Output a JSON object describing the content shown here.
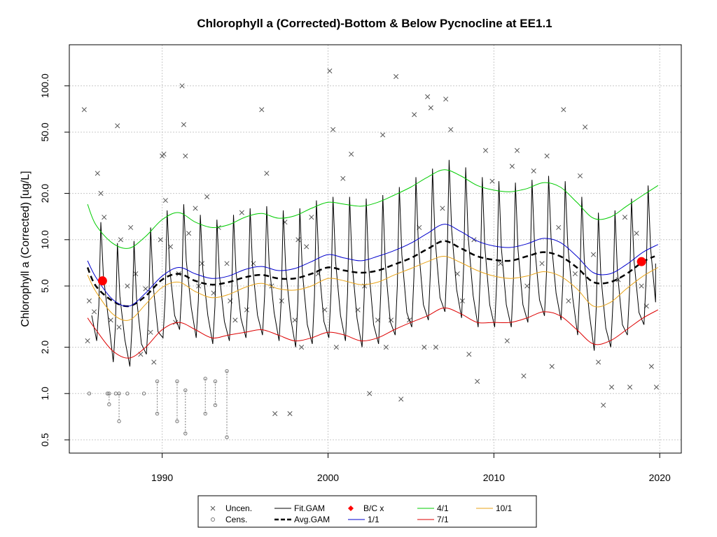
{
  "chart_data": {
    "type": "line",
    "title": "Chlorophyll a (Corrected)-Bottom & Below Pycnocline at EE1.1",
    "xlabel": "",
    "ylabel": "Chlorophyll a (Corrected) [ug/L]",
    "y_scale": "log",
    "xlim": [
      1984.4,
      2021.3
    ],
    "ylim": [
      0.41,
      185
    ],
    "x_ticks": [
      1990,
      2000,
      2010,
      2020
    ],
    "x_tick_labels": [
      "1990",
      "2000",
      "2010",
      "2020"
    ],
    "y_ticks": [
      0.5,
      1.0,
      2.0,
      5.0,
      10.0,
      20.0,
      50.0,
      100.0
    ],
    "y_tick_labels": [
      "0.5",
      "1.0",
      "2.0",
      "5.0",
      "10.0",
      "20.0",
      "50.0",
      "100.0"
    ],
    "grid": true,
    "legend_position": "bottom",
    "legend": [
      {
        "label": "Uncen.",
        "kind": "cross",
        "color": "#555555"
      },
      {
        "label": "Cens.",
        "kind": "circle",
        "color": "#777777"
      },
      {
        "label": "Fit.GAM",
        "kind": "line",
        "color": "#000000"
      },
      {
        "label": "Avg.GAM",
        "kind": "dashed",
        "color": "#000000"
      },
      {
        "label": "B/C x",
        "kind": "dot",
        "color": "#ff0000"
      },
      {
        "label": "1/1",
        "kind": "line",
        "color": "#0000cd"
      },
      {
        "label": "4/1",
        "kind": "line",
        "color": "#00cc00"
      },
      {
        "label": "7/1",
        "kind": "line",
        "color": "#dd0000"
      },
      {
        "label": "10/1",
        "kind": "line",
        "color": "#e8a317"
      }
    ],
    "series": [
      {
        "name": "Avg.GAM",
        "color": "#000000",
        "style": "dashed",
        "x": [
          1985.5,
          1986,
          1987,
          1988,
          1989,
          1990,
          1991,
          1992,
          1993,
          1994,
          1995,
          1996,
          1997,
          1998,
          1999,
          2000,
          2001,
          2002,
          2003,
          2004,
          2005,
          2006,
          2007,
          2008,
          2009,
          2010,
          2011,
          2012,
          2013,
          2014,
          2015,
          2016,
          2017,
          2018,
          2019,
          2019.7
        ],
        "y": [
          6.6,
          5.0,
          4.0,
          3.7,
          4.3,
          5.5,
          6.0,
          5.4,
          5.1,
          5.3,
          5.7,
          5.9,
          5.6,
          5.6,
          6.0,
          6.6,
          6.3,
          6.1,
          6.3,
          6.9,
          7.6,
          8.7,
          9.8,
          8.8,
          7.8,
          7.4,
          7.3,
          7.8,
          8.3,
          7.8,
          6.6,
          5.3,
          5.3,
          6.0,
          7.2,
          7.8
        ]
      },
      {
        "name": "1/1",
        "color": "#0000cd",
        "style": "solid",
        "x": [
          1985.5,
          1986,
          1987,
          1988,
          1989,
          1990,
          1991,
          1992,
          1993,
          1994,
          1995,
          1996,
          1997,
          1998,
          1999,
          2000,
          2001,
          2002,
          2003,
          2004,
          2005,
          2006,
          2007,
          2008,
          2009,
          2010,
          2011,
          2012,
          2013,
          2014,
          2015,
          2016,
          2017,
          2018,
          2019,
          2019.9
        ],
        "y": [
          7.3,
          5.7,
          4.1,
          3.7,
          4.5,
          5.8,
          6.6,
          6.0,
          5.6,
          5.8,
          6.4,
          6.7,
          6.3,
          6.5,
          7.2,
          8.0,
          7.6,
          7.3,
          7.8,
          8.5,
          9.5,
          11.0,
          12.6,
          11.3,
          9.8,
          9.1,
          8.9,
          9.4,
          10.2,
          9.6,
          7.8,
          6.1,
          6.0,
          6.9,
          8.3,
          9.3
        ]
      },
      {
        "name": "4/1",
        "color": "#00cc00",
        "style": "solid",
        "x": [
          1985.5,
          1986,
          1987,
          1988,
          1989,
          1990,
          1991,
          1992,
          1993,
          1994,
          1995,
          1996,
          1997,
          1998,
          1999,
          2000,
          2001,
          2002,
          2003,
          2004,
          2005,
          2006,
          2007,
          2008,
          2009,
          2010,
          2011,
          2012,
          2013,
          2014,
          2015,
          2016,
          2017,
          2018,
          2019,
          2019.9
        ],
        "y": [
          17.0,
          12.5,
          9.5,
          8.8,
          10.5,
          13.5,
          15.0,
          13.0,
          12.0,
          12.5,
          14.0,
          14.8,
          13.8,
          14.3,
          16.0,
          17.5,
          17.0,
          16.5,
          17.5,
          19.5,
          22.0,
          25.5,
          28.5,
          26.0,
          22.5,
          21.0,
          20.5,
          21.5,
          23.5,
          22.0,
          17.5,
          13.8,
          14.0,
          16.5,
          19.5,
          22.5
        ]
      },
      {
        "name": "7/1",
        "color": "#dd0000",
        "style": "solid",
        "x": [
          1985.5,
          1986,
          1987,
          1988,
          1989,
          1990,
          1991,
          1992,
          1993,
          1994,
          1995,
          1996,
          1997,
          1998,
          1999,
          2000,
          2001,
          2002,
          2003,
          2004,
          2005,
          2006,
          2007,
          2008,
          2009,
          2010,
          2011,
          2012,
          2013,
          2014,
          2015,
          2016,
          2017,
          2018,
          2019,
          2019.9
        ],
        "y": [
          3.1,
          2.6,
          1.9,
          1.7,
          2.0,
          2.6,
          2.9,
          2.6,
          2.3,
          2.4,
          2.5,
          2.6,
          2.4,
          2.2,
          2.3,
          2.5,
          2.4,
          2.2,
          2.3,
          2.6,
          2.9,
          3.2,
          3.6,
          3.3,
          2.9,
          2.9,
          2.9,
          3.1,
          3.4,
          3.2,
          2.6,
          2.1,
          2.2,
          2.6,
          3.1,
          3.5
        ]
      },
      {
        "name": "10/1",
        "color": "#e8a317",
        "style": "solid",
        "x": [
          1985.5,
          1986,
          1987,
          1988,
          1989,
          1990,
          1991,
          1992,
          1993,
          1994,
          1995,
          1996,
          1997,
          1998,
          1999,
          2000,
          2001,
          2002,
          2003,
          2004,
          2005,
          2006,
          2007,
          2008,
          2009,
          2010,
          2011,
          2012,
          2013,
          2014,
          2015,
          2016,
          2017,
          2018,
          2019,
          2019.9
        ],
        "y": [
          5.9,
          4.6,
          3.3,
          3.0,
          3.8,
          4.9,
          5.3,
          4.6,
          4.2,
          4.4,
          4.9,
          5.2,
          4.8,
          4.7,
          5.0,
          5.6,
          5.4,
          5.1,
          5.3,
          5.9,
          6.5,
          7.2,
          7.8,
          7.1,
          6.3,
          5.8,
          5.6,
          5.8,
          6.2,
          5.8,
          4.8,
          3.7,
          3.9,
          4.8,
          5.8,
          6.6
        ]
      }
    ],
    "fit_gam": {
      "name": "Fit.GAM",
      "color": "#000000",
      "description_of_mark": "seasonal oscillation, one peak per year",
      "years": [
        1985,
        1986,
        1987,
        1988,
        1989,
        1990,
        1991,
        1992,
        1993,
        1994,
        1995,
        1996,
        1997,
        1998,
        1999,
        2000,
        2001,
        2002,
        2003,
        2004,
        2005,
        2006,
        2007,
        2008,
        2009,
        2010,
        2011,
        2012,
        2013,
        2014,
        2015,
        2016,
        2017,
        2018,
        2019
      ],
      "annual_peak": [
        15.0,
        13.0,
        9.5,
        9.8,
        12.0,
        15.5,
        17.0,
        14.5,
        13.5,
        14.5,
        16.0,
        16.5,
        15.5,
        16.0,
        18.0,
        19.0,
        19.0,
        18.5,
        19.5,
        22.0,
        25.5,
        29.0,
        33.0,
        29.5,
        25.5,
        24.0,
        23.5,
        24.5,
        26.0,
        24.0,
        19.0,
        15.0,
        15.5,
        18.5,
        22.5
      ],
      "annual_trough": [
        2.3,
        2.2,
        1.6,
        1.5,
        1.8,
        2.3,
        2.6,
        2.3,
        2.1,
        2.2,
        2.3,
        2.4,
        2.2,
        2.0,
        2.1,
        2.3,
        2.2,
        2.0,
        2.1,
        2.4,
        2.7,
        3.0,
        3.4,
        3.1,
        2.7,
        2.7,
        2.7,
        2.9,
        3.2,
        3.0,
        2.4,
        1.9,
        2.0,
        2.4,
        2.8
      ],
      "end_value": 7.0
    },
    "bc_points": {
      "name": "B/C x",
      "color": "#ff0000",
      "x": [
        1986.4,
        2018.9
      ],
      "y": [
        5.4,
        7.2
      ]
    },
    "uncensored_points": {
      "name": "Uncen.",
      "color": "#555555",
      "marker": "x",
      "x": [
        1985.3,
        1985.5,
        1985.6,
        1985.9,
        1986.1,
        1986.3,
        1986.5,
        1986.9,
        1987.3,
        1987.4,
        1987.5,
        1987.9,
        1988.1,
        1988.4,
        1988.7,
        1989.0,
        1989.3,
        1989.5,
        1989.9,
        1990.0,
        1990.1,
        1990.2,
        1990.5,
        1990.8,
        1991.0,
        1991.2,
        1991.3,
        1991.4,
        1991.6,
        1992.0,
        1992.2,
        1992.4,
        1992.7,
        1993.1,
        1993.4,
        1993.9,
        1994.1,
        1994.4,
        1994.8,
        1995.1,
        1995.5,
        1996.0,
        1996.3,
        1996.6,
        1996.8,
        1997.2,
        1997.4,
        1997.7,
        1998.0,
        1998.2,
        1998.4,
        1998.7,
        1999.0,
        1999.4,
        1999.8,
        2000.1,
        2000.3,
        2000.5,
        2000.9,
        2001.4,
        2001.8,
        2002.2,
        2002.5,
        2003.0,
        2003.3,
        2003.5,
        2003.8,
        2004.1,
        2004.4,
        2004.9,
        2005.2,
        2005.5,
        2005.8,
        2006.0,
        2006.2,
        2006.5,
        2006.9,
        2007.1,
        2007.4,
        2007.8,
        2008.1,
        2008.5,
        2008.8,
        2009.0,
        2009.5,
        2009.9,
        2010.4,
        2010.8,
        2011.1,
        2011.4,
        2011.8,
        2012.0,
        2012.4,
        2012.9,
        2013.2,
        2013.5,
        2013.9,
        2014.2,
        2014.5,
        2014.9,
        2015.2,
        2015.5,
        2016.0,
        2016.3,
        2016.6,
        2017.1,
        2017.5,
        2017.9,
        2018.2,
        2018.6,
        2018.9,
        2019.2,
        2019.5,
        2019.8
      ],
      "y": [
        70,
        2.2,
        4.0,
        3.4,
        27,
        20,
        14,
        3.0,
        55,
        2.7,
        10,
        5.0,
        12,
        6.0,
        1.8,
        4.8,
        2.5,
        1.6,
        10,
        35,
        36,
        18,
        9.0,
        2.9,
        6.0,
        100,
        56,
        35,
        11,
        16,
        5.0,
        7.0,
        19,
        4.5,
        12,
        7.0,
        4.0,
        3.0,
        15,
        3.5,
        7.0,
        70,
        27,
        5.0,
        0.74,
        4.0,
        13,
        0.74,
        3.0,
        10,
        2.0,
        9.0,
        14,
        6.0,
        3.5,
        125,
        52,
        2.0,
        25,
        36,
        3.5,
        5.0,
        1.0,
        3.0,
        48,
        2.0,
        3.0,
        115,
        0.92,
        3.0,
        65,
        12,
        2.0,
        85,
        72,
        2.0,
        16,
        82,
        52,
        6.0,
        4.0,
        1.8,
        10,
        1.2,
        38,
        24,
        7.0,
        2.2,
        30,
        38,
        1.3,
        5.0,
        28,
        7.0,
        35,
        1.5,
        12,
        70,
        4.0,
        6.0,
        26,
        54,
        8.0,
        1.6,
        0.84,
        1.1,
        5.5,
        14,
        1.1,
        11,
        5.0,
        3.7,
        1.5,
        1.1
      ]
    },
    "censored_points": {
      "name": "Cens.",
      "color": "#777777",
      "marker": "o",
      "x": [
        1985.6,
        1986.7,
        1986.8,
        1987.2,
        1987.4,
        1987.9,
        1988.9,
        1989.7,
        1990.9,
        1991.4,
        1992.6,
        1993.2,
        1993.9
      ],
      "y_upper": [
        1.0,
        1.0,
        1.0,
        1.0,
        1.0,
        1.0,
        1.0,
        1.2,
        1.2,
        1.05,
        1.25,
        1.2,
        1.4
      ],
      "y_lower": [
        1.0,
        1.0,
        0.85,
        1.0,
        0.66,
        1.0,
        1.0,
        0.74,
        0.66,
        0.55,
        0.74,
        0.84,
        0.52
      ]
    }
  }
}
